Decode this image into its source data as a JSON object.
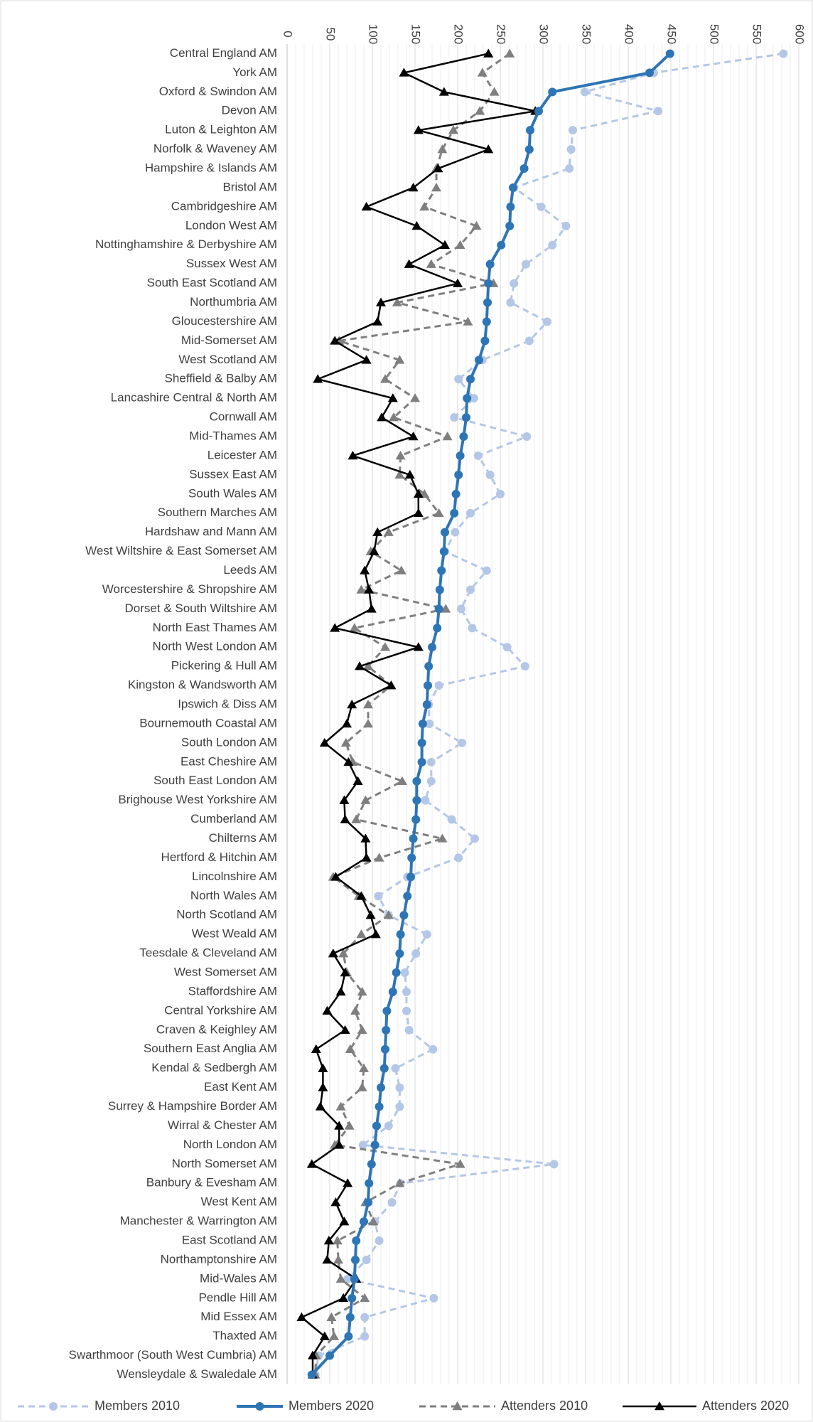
{
  "chart_data": {
    "type": "line",
    "categories": [
      "Central England AM",
      "York AM",
      "Oxford & Swindon AM",
      "Devon AM",
      "Luton & Leighton AM",
      "Norfolk & Waveney AM",
      "Hampshire & Islands AM",
      "Bristol AM",
      "Cambridgeshire AM",
      "London West AM",
      "Nottinghamshire & Derbyshire AM",
      "Sussex West AM",
      "South East Scotland AM",
      "Northumbria AM",
      "Gloucestershire AM",
      "Mid-Somerset AM",
      "West Scotland AM",
      "Sheffield & Balby AM",
      "Lancashire Central & North AM",
      "Cornwall AM",
      "Mid-Thames AM",
      "Leicester AM",
      "Sussex East AM",
      "South Wales AM",
      "Southern Marches AM",
      "Hardshaw and Mann AM",
      "West Wiltshire & East Somerset AM",
      "Leeds AM",
      "Worcestershire & Shropshire AM",
      "Dorset & South Wiltshire AM",
      "North East Thames AM",
      "North West London AM",
      "Pickering & Hull AM",
      "Kingston & Wandsworth AM",
      "Ipswich & Diss AM",
      "Bournemouth Coastal AM",
      "South London AM",
      "East Cheshire AM",
      "South East London AM",
      "Brighouse West Yorkshire AM",
      "Cumberland AM",
      "Chilterns AM",
      "Hertford & Hitchin AM",
      "Lincolnshire AM",
      "North Wales AM",
      "North Scotland AM",
      "West Weald AM",
      "Teesdale & Cleveland AM",
      "West Somerset AM",
      "Staffordshire AM",
      "Central Yorkshire AM",
      "Craven & Keighley AM",
      "Southern East Anglia AM",
      "Kendal & Sedbergh AM",
      "East Kent AM",
      "Surrey & Hampshire Border AM",
      "Wirral & Chester AM",
      "North London AM",
      "North Somerset AM",
      "Banbury & Evesham AM",
      "West Kent AM",
      "Manchester & Warrington AM",
      "East Scotland AM",
      "Northamptonshire AM",
      "Mid-Wales AM",
      "Pendle Hill AM",
      "Mid Essex AM",
      "Thaxted AM",
      "Swarthmoor (South West Cumbria) AM",
      "Wensleydale & Swaledale AM"
    ],
    "series": [
      {
        "name": "Members 2010",
        "color": "#b4c7e7",
        "dashed": true,
        "marker": "circle",
        "values": [
          582,
          430,
          349,
          435,
          335,
          333,
          331,
          266,
          298,
          327,
          311,
          280,
          266,
          262,
          305,
          284,
          229,
          201,
          219,
          196,
          281,
          224,
          238,
          250,
          215,
          197,
          185,
          234,
          215,
          204,
          217,
          258,
          279,
          178,
          166,
          167,
          205,
          169,
          169,
          162,
          193,
          220,
          201,
          141,
          107,
          119,
          164,
          151,
          138,
          140,
          140,
          143,
          171,
          127,
          132,
          132,
          119,
          89,
          313,
          133,
          123,
          103,
          108,
          93,
          71,
          172,
          91,
          91,
          37,
          33
        ]
      },
      {
        "name": "Members 2020",
        "color": "#2e75b6",
        "dashed": false,
        "marker": "circle",
        "values": [
          449,
          425,
          311,
          295,
          285,
          284,
          278,
          265,
          262,
          261,
          251,
          238,
          236,
          235,
          234,
          232,
          225,
          215,
          211,
          210,
          207,
          203,
          201,
          198,
          196,
          185,
          184,
          181,
          179,
          178,
          176,
          170,
          166,
          165,
          164,
          159,
          158,
          158,
          152,
          152,
          151,
          148,
          146,
          145,
          141,
          137,
          133,
          132,
          128,
          124,
          117,
          116,
          115,
          114,
          110,
          108,
          105,
          103,
          99,
          96,
          95,
          90,
          81,
          80,
          79,
          76,
          74,
          72,
          50,
          29
        ]
      },
      {
        "name": "Attenders 2010",
        "color": "#7f7f7f",
        "dashed": true,
        "marker": "triangle",
        "values": [
          261,
          229,
          243,
          226,
          195,
          182,
          175,
          175,
          161,
          222,
          203,
          169,
          242,
          129,
          212,
          61,
          132,
          115,
          150,
          125,
          188,
          133,
          132,
          161,
          178,
          119,
          98,
          134,
          87,
          186,
          79,
          115,
          95,
          122,
          95,
          95,
          69,
          77,
          135,
          92,
          81,
          182,
          108,
          54,
          84,
          119,
          87,
          66,
          70,
          88,
          80,
          88,
          74,
          90,
          88,
          63,
          73,
          56,
          203,
          132,
          92,
          101,
          59,
          60,
          63,
          91,
          52,
          55,
          34,
          33
        ]
      },
      {
        "name": "Attenders 2020",
        "color": "#000000",
        "dashed": false,
        "marker": "triangle",
        "values": [
          236,
          137,
          184,
          291,
          154,
          236,
          177,
          148,
          93,
          152,
          185,
          143,
          200,
          110,
          106,
          56,
          93,
          36,
          124,
          111,
          148,
          77,
          144,
          154,
          154,
          106,
          102,
          91,
          96,
          99,
          56,
          154,
          85,
          122,
          76,
          70,
          44,
          72,
          83,
          67,
          68,
          92,
          93,
          57,
          87,
          98,
          104,
          54,
          68,
          63,
          47,
          68,
          34,
          42,
          42,
          39,
          61,
          61,
          29,
          71,
          57,
          67,
          49,
          47,
          81,
          66,
          17,
          44,
          30,
          30
        ]
      }
    ],
    "xlim": [
      0,
      600
    ],
    "xticks": [
      0,
      50,
      100,
      150,
      200,
      250,
      300,
      350,
      400,
      450,
      500,
      550,
      600
    ],
    "grid": true,
    "minor_grid_step": 10,
    "legend": "bottom"
  }
}
